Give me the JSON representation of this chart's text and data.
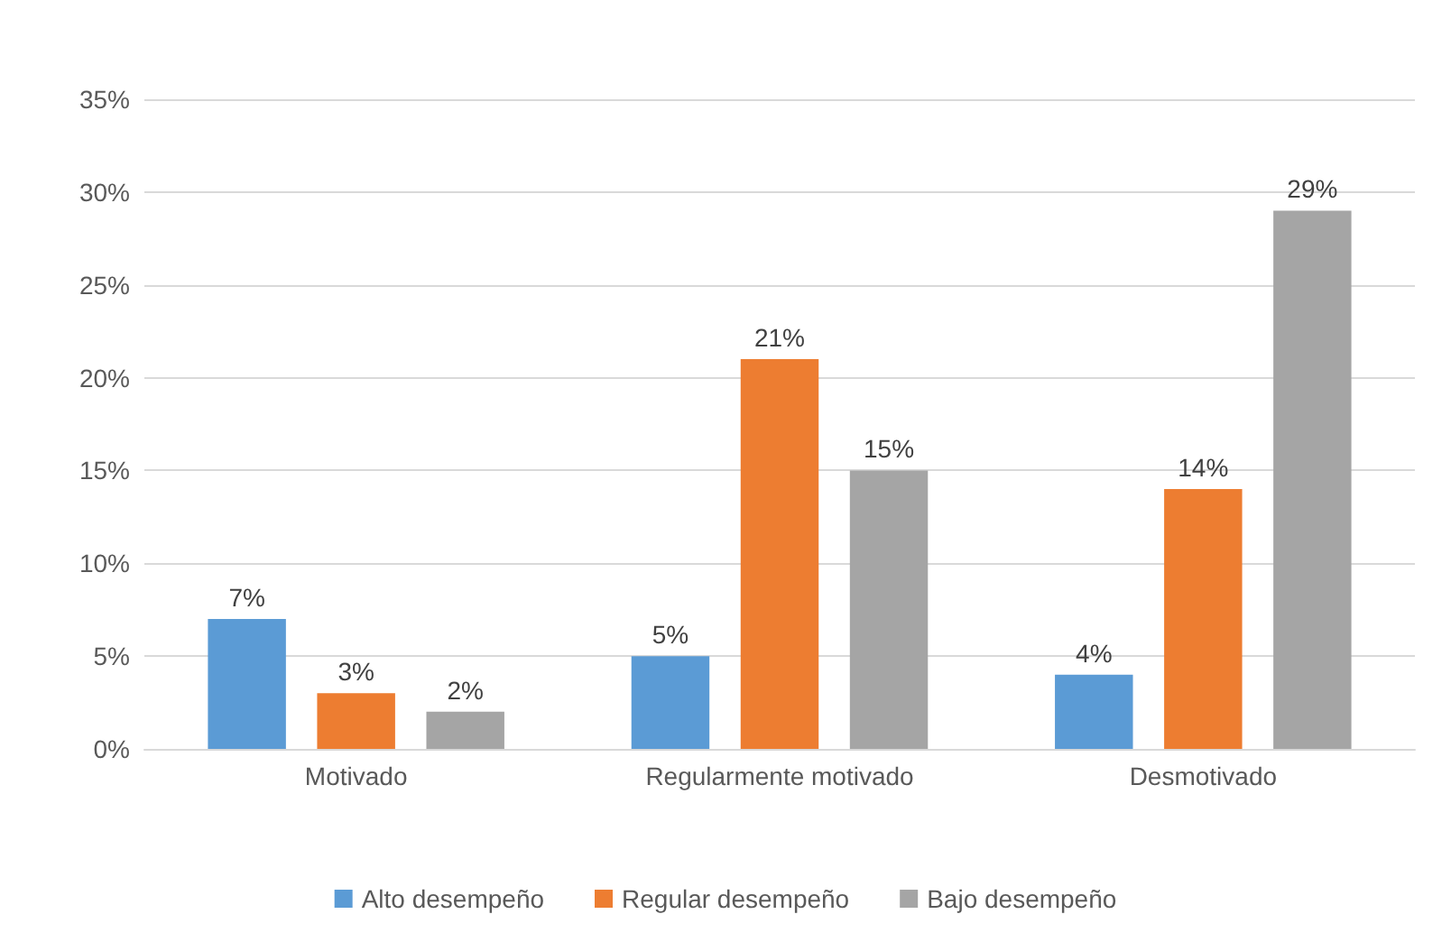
{
  "chart_data": {
    "type": "bar",
    "categories": [
      "Motivado",
      "Regularmente motivado",
      "Desmotivado"
    ],
    "series": [
      {
        "name": "Alto desempeño",
        "color": "#5b9bd5",
        "values": [
          7,
          5,
          4
        ],
        "value_labels": [
          "7%",
          "5%",
          "4%"
        ]
      },
      {
        "name": "Regular desempeño",
        "color": "#ed7d31",
        "values": [
          3,
          21,
          14
        ],
        "value_labels": [
          "3%",
          "21%",
          "14%"
        ]
      },
      {
        "name": "Bajo desempeño",
        "color": "#a5a5a5",
        "values": [
          2,
          15,
          29
        ],
        "value_labels": [
          "2%",
          "15%",
          "29%"
        ]
      }
    ],
    "ylim": [
      0,
      35
    ],
    "yticks": [
      {
        "value": 0,
        "label": "0%"
      },
      {
        "value": 5,
        "label": "5%"
      },
      {
        "value": 10,
        "label": "10%"
      },
      {
        "value": 15,
        "label": "15%"
      },
      {
        "value": 20,
        "label": "20%"
      },
      {
        "value": 25,
        "label": "25%"
      },
      {
        "value": 30,
        "label": "30%"
      },
      {
        "value": 35,
        "label": "35%"
      }
    ],
    "grid": "y",
    "legend": "bottom"
  }
}
